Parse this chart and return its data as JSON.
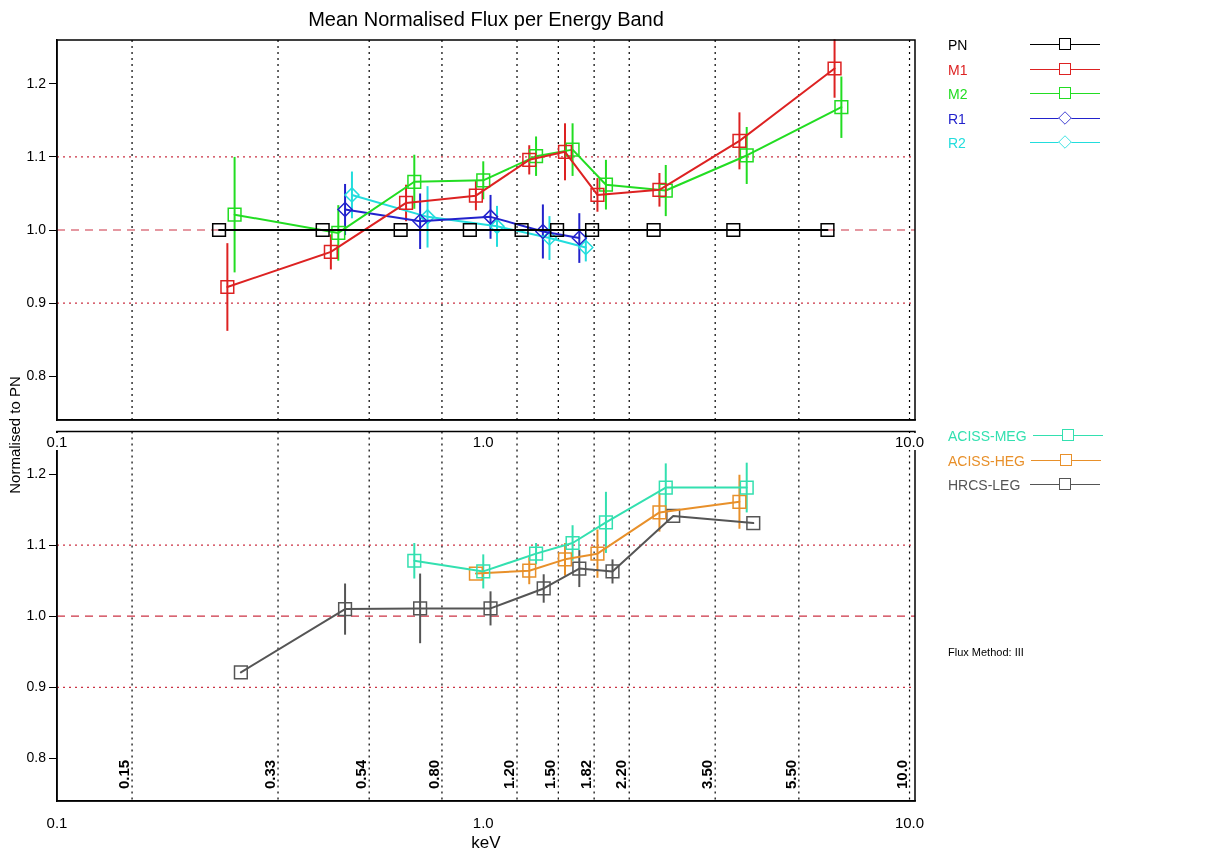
{
  "chart_data": [
    {
      "type": "line",
      "title": "Mean Normalised Flux per Energy Band",
      "ylabel": "Normalised to PN",
      "log": "x",
      "xlim": [
        0.1,
        10.3
      ],
      "xticks": [
        {
          "value": 0.1,
          "label": "0.1"
        },
        {
          "value": 1,
          "label": "1.0"
        },
        {
          "value": 10,
          "label": "10.0"
        }
      ],
      "ylim": [
        0.74,
        1.26
      ],
      "yticks": [
        0.8,
        0.9,
        {
          "value": 1,
          "label": "1.0"
        },
        1.1,
        1.2
      ],
      "legend": "right",
      "line_style": "solid",
      "ref_lines": [
        {
          "axis": "x",
          "value": 0.15,
          "color": "#000000",
          "line_style": "dotted"
        },
        {
          "axis": "x",
          "value": 0.33,
          "color": "#000000",
          "line_style": "dotted"
        },
        {
          "axis": "x",
          "value": 0.54,
          "color": "#000000",
          "line_style": "dotted"
        },
        {
          "axis": "x",
          "value": 0.8,
          "color": "#000000",
          "line_style": "dotted"
        },
        {
          "axis": "x",
          "value": 1.2,
          "color": "#000000",
          "line_style": "dotted"
        },
        {
          "axis": "x",
          "value": 1.5,
          "color": "#000000",
          "line_style": "dotted"
        },
        {
          "axis": "x",
          "value": 1.82,
          "color": "#000000",
          "line_style": "dotted"
        },
        {
          "axis": "x",
          "value": 2.2,
          "color": "#000000",
          "line_style": "dotted"
        },
        {
          "axis": "x",
          "value": 3.5,
          "color": "#000000",
          "line_style": "dotted"
        },
        {
          "axis": "x",
          "value": 5.5,
          "color": "#000000",
          "line_style": "dotted"
        },
        {
          "axis": "x",
          "value": 10,
          "color": "#000000",
          "line_style": "dotted"
        },
        {
          "axis": "y",
          "value": 1,
          "color": "#cc3344",
          "line_style": "dashed"
        },
        {
          "axis": "y",
          "value": 0.9,
          "color": "#cc3344",
          "line_style": "dotted"
        },
        {
          "axis": "y",
          "value": 1.1,
          "color": "#cc3344",
          "line_style": "dotted"
        }
      ],
      "series": [
        {
          "name": "PN",
          "color": "#000000",
          "marker": "square",
          "x": [
            0.24,
            0.42,
            0.64,
            0.93,
            1.23,
            1.49,
            1.8,
            2.51,
            3.86,
            6.42
          ],
          "values": [
            1,
            1,
            1,
            1,
            1,
            1,
            1,
            1,
            1,
            1
          ]
        },
        {
          "name": "M1",
          "color": "#dd2222",
          "marker": "square",
          "x": [
            0.251,
            0.439,
            0.659,
            0.961,
            1.282,
            1.555,
            1.853,
            2.59,
            3.99,
            6.67
          ],
          "values": [
            0.922,
            0.97,
            1.037,
            1.047,
            1.096,
            1.107,
            1.048,
            1.055,
            1.122,
            1.221
          ],
          "errors": [
            0.06,
            0.024,
            0.025,
            0.02,
            0.02,
            0.039,
            0.023,
            0.023,
            0.039,
            0.04
          ]
        },
        {
          "name": "M2",
          "color": "#22dd22",
          "marker": "square",
          "x": [
            0.261,
            0.457,
            0.689,
            1.0,
            1.33,
            1.62,
            1.94,
            2.68,
            4.15,
            6.92
          ],
          "values": [
            1.021,
            0.996,
            1.066,
            1.068,
            1.101,
            1.11,
            1.062,
            1.054,
            1.102,
            1.168
          ],
          "errors": [
            0.079,
            0.038,
            0.037,
            0.026,
            0.027,
            0.036,
            0.034,
            0.035,
            0.039,
            0.042
          ]
        },
        {
          "name": "R1",
          "color": "#2222cc",
          "marker": "diamond",
          "x": [
            0.474,
            0.711,
            1.04,
            1.38,
            1.68
          ],
          "values": [
            1.028,
            1.012,
            1.018,
            0.998,
            0.989
          ],
          "errors": [
            0.035,
            0.038,
            0.03,
            0.037,
            0.034
          ]
        },
        {
          "name": "R2",
          "color": "#22dddd",
          "marker": "diamond",
          "x": [
            0.492,
            0.74,
            1.077,
            1.43,
            1.74
          ],
          "values": [
            1.048,
            1.018,
            1.005,
            0.989,
            0.976
          ],
          "errors": [
            0.032,
            0.042,
            0.028,
            0.03,
            0.019
          ]
        }
      ]
    },
    {
      "type": "line",
      "xlabel": "keV",
      "log": "x",
      "xlim": [
        0.1,
        10.3
      ],
      "xticks": [
        {
          "value": 0.1,
          "label": "0.1"
        },
        {
          "value": 1,
          "label": "1.0"
        },
        {
          "value": 10,
          "label": "10.0"
        }
      ],
      "ylim": [
        0.74,
        1.26
      ],
      "yticks": [
        0.8,
        0.9,
        {
          "value": 1,
          "label": "1.0"
        },
        1.1,
        1.2
      ],
      "legend": "right",
      "line_style": "solid",
      "annotations": [
        "Flux Method: III"
      ],
      "ref_lines": [
        {
          "axis": "x",
          "value": 0.15,
          "label": "0.15",
          "color": "#000000",
          "line_style": "dotted"
        },
        {
          "axis": "x",
          "value": 0.33,
          "label": "0.33",
          "color": "#000000",
          "line_style": "dotted"
        },
        {
          "axis": "x",
          "value": 0.54,
          "label": "0.54",
          "color": "#000000",
          "line_style": "dotted"
        },
        {
          "axis": "x",
          "value": 0.8,
          "label": "0.80",
          "color": "#000000",
          "line_style": "dotted"
        },
        {
          "axis": "x",
          "value": 1.2,
          "label": "1.20",
          "color": "#000000",
          "line_style": "dotted"
        },
        {
          "axis": "x",
          "value": 1.5,
          "label": "1.50",
          "color": "#000000",
          "line_style": "dotted"
        },
        {
          "axis": "x",
          "value": 1.82,
          "label": "1.82",
          "color": "#000000",
          "line_style": "dotted"
        },
        {
          "axis": "x",
          "value": 2.2,
          "label": "2.20",
          "color": "#000000",
          "line_style": "dotted"
        },
        {
          "axis": "x",
          "value": 3.5,
          "label": "3.50",
          "color": "#000000",
          "line_style": "dotted"
        },
        {
          "axis": "x",
          "value": 5.5,
          "label": "5.50",
          "color": "#000000",
          "line_style": "dotted"
        },
        {
          "axis": "x",
          "value": 10,
          "label": "10.0",
          "color": "#000000",
          "line_style": "dotted"
        },
        {
          "axis": "y",
          "value": 1,
          "color": "#cc3344",
          "line_style": "dashed"
        },
        {
          "axis": "y",
          "value": 0.9,
          "color": "#cc3344",
          "line_style": "dotted"
        },
        {
          "axis": "y",
          "value": 1.1,
          "color": "#cc3344",
          "line_style": "dotted"
        }
      ],
      "series": [
        {
          "name": "ACISS-MEG",
          "color": "#33e0b0",
          "marker": "square",
          "x": [
            0.689,
            1.0,
            1.33,
            1.62,
            1.94,
            2.68,
            4.15
          ],
          "values": [
            1.078,
            1.063,
            1.088,
            1.103,
            1.132,
            1.181,
            1.181
          ],
          "errors": [
            0.025,
            0.024,
            0.015,
            0.025,
            0.043,
            0.034,
            0.035
          ]
        },
        {
          "name": "ACISS-HEG",
          "color": "#e8902a",
          "marker": "square",
          "x": [
            0.961,
            1.282,
            1.555,
            1.853,
            2.59,
            3.99
          ],
          "values": [
            1.06,
            1.064,
            1.08,
            1.088,
            1.146,
            1.161
          ],
          "errors": [
            null,
            0.019,
            0.023,
            0.034,
            0.027,
            0.038
          ]
        },
        {
          "name": "HRCS-LEG",
          "color": "#555555",
          "marker": "square",
          "x": [
            0.27,
            0.474,
            0.711,
            1.04,
            1.386,
            1.68,
            2.01,
            2.79,
            4.3
          ],
          "values": [
            0.921,
            1.01,
            1.011,
            1.011,
            1.039,
            1.067,
            1.063,
            1.141,
            1.131
          ],
          "errors": [
            null,
            0.036,
            0.049,
            0.024,
            0.02,
            0.026,
            0.017,
            null,
            null
          ]
        }
      ]
    }
  ]
}
